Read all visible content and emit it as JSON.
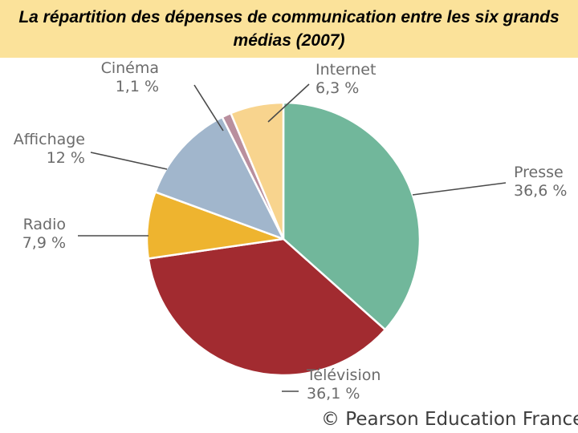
{
  "header": {
    "title": "La répartition des dépenses de communication entre les six grands médias (2007)"
  },
  "chart_data": {
    "type": "pie",
    "title": "La répartition des dépenses de communication entre les six grands médias (2007)",
    "slices": [
      {
        "name": "Presse",
        "value": 36.6,
        "value_label": "36,6 %",
        "color": "#71b79b"
      },
      {
        "name": "Télévision",
        "value": 36.1,
        "value_label": "36,1 %",
        "color": "#a22b30"
      },
      {
        "name": "Radio",
        "value": 7.9,
        "value_label": "7,9 %",
        "color": "#eeb42f"
      },
      {
        "name": "Affichage",
        "value": 12,
        "value_label": "12 %",
        "color": "#a1b6cc"
      },
      {
        "name": "Cinéma",
        "value": 1.1,
        "value_label": "1,1 %",
        "color": "#b98f9e"
      },
      {
        "name": "Internet",
        "value": 6.3,
        "value_label": "6,3 %",
        "color": "#f8d48e"
      }
    ],
    "start_angle_deg": 0,
    "direction": "clockwise"
  },
  "footer": {
    "copyright": "© Pearson Education France"
  }
}
